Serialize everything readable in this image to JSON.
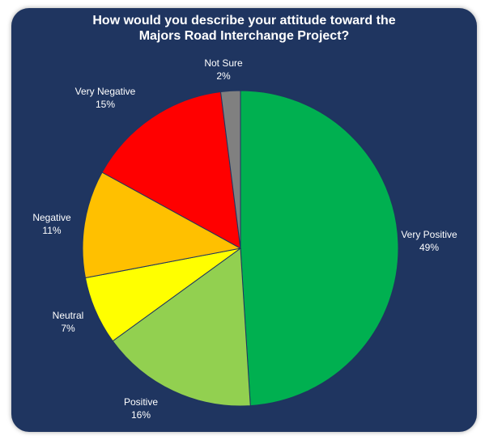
{
  "chart_data": {
    "type": "pie",
    "title_line1": "How would you describe your attitude toward the",
    "title_line2": "Majors Road Interchange Project?",
    "slices": [
      {
        "name": "Very Positive",
        "value": 49,
        "label": "49%",
        "color": "#00b050"
      },
      {
        "name": "Positive",
        "value": 16,
        "label": "16%",
        "color": "#92d050"
      },
      {
        "name": "Neutral",
        "value": 7,
        "label": "7%",
        "color": "#ffff00"
      },
      {
        "name": "Negative",
        "value": 11,
        "label": "11%",
        "color": "#ffc000"
      },
      {
        "name": "Very Negative",
        "value": 15,
        "label": "15%",
        "color": "#ff0000"
      },
      {
        "name": "Not Sure",
        "value": 2,
        "label": "2%",
        "color": "#808080"
      }
    ],
    "start_angle": "12 o'clock",
    "direction": "clockwise",
    "legend": "none"
  },
  "colors": {
    "background": "#1f3560",
    "text": "#ffffff"
  }
}
